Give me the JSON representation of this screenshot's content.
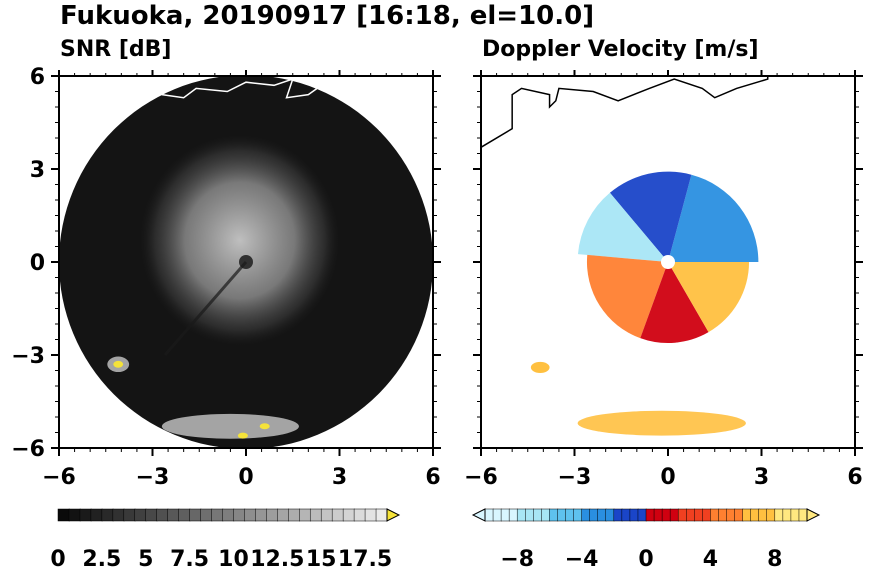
{
  "figure_title": "Fukuoka, 20190917 [16:18, el=10.0]",
  "colors": {
    "snr_background": "#141414",
    "snr_echo": "#bdbdbd",
    "snr_hot": "#f5e33a",
    "coastline": "#ffffff",
    "coastline_on_white": "#000000"
  },
  "chart_data": [
    {
      "type": "heatmap",
      "title": "SNR [dB]",
      "xlim": [
        -6,
        6
      ],
      "ylim": [
        -6,
        6
      ],
      "x_ticks": [
        -6,
        -3,
        0,
        3,
        6
      ],
      "y_ticks": [
        -6,
        -3,
        0,
        3,
        6
      ],
      "x_tick_labels": [
        "−6",
        "−3",
        "0",
        "3",
        "6"
      ],
      "y_tick_labels": [
        "−6",
        "−3",
        "0",
        "3",
        "6"
      ],
      "radar_range": 6,
      "radar_center": [
        0,
        0
      ],
      "colorbar": {
        "min": 0,
        "max": 18.75,
        "extend": "max",
        "labels": [
          "0",
          "2.5",
          "5",
          "7.5",
          "10",
          "12.5",
          "15",
          "17.5"
        ],
        "label_values": [
          0,
          2.5,
          5,
          7.5,
          10,
          12.5,
          15,
          17.5
        ]
      },
      "echo_regions": [
        {
          "name": "main-echo",
          "x": -0.2,
          "y": 0.7,
          "rx": 3.2,
          "ry": 3.4,
          "snr": 12
        },
        {
          "name": "west-cluster",
          "x": -4.1,
          "y": -3.3,
          "rx": 0.35,
          "ry": 0.25,
          "snr": 19
        },
        {
          "name": "south-band",
          "x": -0.5,
          "y": -5.3,
          "rx": 2.2,
          "ry": 0.4,
          "snr": 16
        }
      ]
    },
    {
      "type": "heatmap",
      "title": "Doppler Velocity [m/s]",
      "xlim": [
        -6,
        6
      ],
      "ylim": [
        -6,
        6
      ],
      "x_ticks": [
        -6,
        -3,
        0,
        3,
        6
      ],
      "y_ticks": [
        -6,
        -3,
        0,
        3,
        6
      ],
      "x_tick_labels": [
        "−6",
        "−3",
        "0",
        "3",
        "6"
      ],
      "radar_range": 6,
      "radar_center": [
        0,
        0
      ],
      "colorbar": {
        "min": -10,
        "max": 10,
        "extend": "both",
        "labels": [
          "−8",
          "−4",
          "0",
          "4",
          "8"
        ],
        "label_values": [
          -8,
          -4,
          0,
          4,
          8
        ]
      },
      "velocity_sectors": [
        {
          "from_deg": 0,
          "to_deg": 75,
          "velocity": -3
        },
        {
          "from_deg": 75,
          "to_deg": 130,
          "velocity": -1.5
        },
        {
          "from_deg": 130,
          "to_deg": 175,
          "velocity": -7
        },
        {
          "from_deg": 175,
          "to_deg": 250,
          "velocity": 6
        },
        {
          "from_deg": 250,
          "to_deg": 300,
          "velocity": 2
        },
        {
          "from_deg": 300,
          "to_deg": 360,
          "velocity": 7
        }
      ]
    }
  ]
}
